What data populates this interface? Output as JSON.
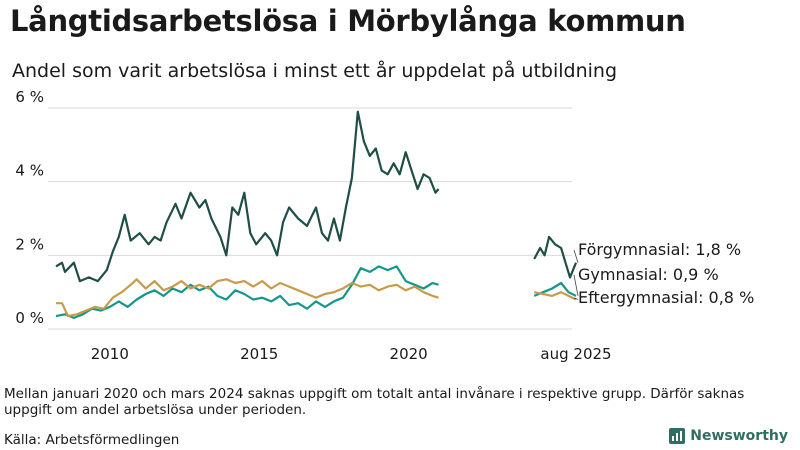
{
  "title": "Långtidsarbetslösa i Mörbylånga kommun",
  "subtitle": "Andel som varit arbetslösa i minst ett år uppdelat på utbildning",
  "note": "Mellan januari 2020 och mars 2024 saknas uppgift om totalt antal invånare i respektive grupp. Därför saknas uppgift om andel arbetslösa under perioden.",
  "source": "Källa: Arbetsförmedlingen",
  "brand": "Newsworthy",
  "colors": {
    "forgymnasial": "#1f4e46",
    "gymnasial": "#14978a",
    "eftergymnasial": "#c99a4a"
  },
  "chart_data": {
    "type": "line",
    "x_unit": "year",
    "ylim": [
      0,
      6
    ],
    "yticks": [
      0,
      2,
      4,
      6
    ],
    "ytick_labels": [
      "0 %",
      "2 %",
      "4 %",
      "6 %"
    ],
    "xticks": [
      2010,
      2015,
      2020,
      2025.6
    ],
    "xtick_labels": [
      "2010",
      "2015",
      "2020",
      "aug 2025"
    ],
    "grid": "horizontal",
    "series": [
      {
        "name": "Förgymnasial",
        "end_label": "Förgymnasial: 1,8 %",
        "color": "#1f4e46",
        "segments": [
          [
            [
              2008.2,
              1.7
            ],
            [
              2008.4,
              1.8
            ],
            [
              2008.5,
              1.55
            ],
            [
              2008.8,
              1.8
            ],
            [
              2009.0,
              1.3
            ],
            [
              2009.3,
              1.4
            ],
            [
              2009.6,
              1.3
            ],
            [
              2009.9,
              1.6
            ],
            [
              2010.1,
              2.1
            ],
            [
              2010.3,
              2.5
            ],
            [
              2010.5,
              3.1
            ],
            [
              2010.7,
              2.4
            ],
            [
              2011.0,
              2.6
            ],
            [
              2011.3,
              2.3
            ],
            [
              2011.5,
              2.5
            ],
            [
              2011.7,
              2.4
            ],
            [
              2011.9,
              2.9
            ],
            [
              2012.2,
              3.4
            ],
            [
              2012.4,
              3.0
            ],
            [
              2012.7,
              3.7
            ],
            [
              2013.0,
              3.3
            ],
            [
              2013.2,
              3.5
            ],
            [
              2013.4,
              3.0
            ],
            [
              2013.7,
              2.5
            ],
            [
              2013.9,
              2.0
            ],
            [
              2014.1,
              3.3
            ],
            [
              2014.3,
              3.1
            ],
            [
              2014.5,
              3.7
            ],
            [
              2014.7,
              2.6
            ],
            [
              2014.9,
              2.3
            ],
            [
              2015.2,
              2.6
            ],
            [
              2015.4,
              2.4
            ],
            [
              2015.6,
              2.0
            ],
            [
              2015.8,
              2.9
            ],
            [
              2016.0,
              3.3
            ],
            [
              2016.3,
              3.0
            ],
            [
              2016.6,
              2.8
            ],
            [
              2016.9,
              3.3
            ],
            [
              2017.1,
              2.6
            ],
            [
              2017.3,
              2.4
            ],
            [
              2017.5,
              3.0
            ],
            [
              2017.7,
              2.4
            ],
            [
              2017.9,
              3.3
            ],
            [
              2018.1,
              4.1
            ],
            [
              2018.3,
              5.9
            ],
            [
              2018.5,
              5.1
            ],
            [
              2018.7,
              4.7
            ],
            [
              2018.9,
              4.9
            ],
            [
              2019.1,
              4.3
            ],
            [
              2019.3,
              4.2
            ],
            [
              2019.5,
              4.5
            ],
            [
              2019.7,
              4.2
            ],
            [
              2019.9,
              4.8
            ],
            [
              2020.1,
              4.3
            ],
            [
              2020.3,
              3.8
            ],
            [
              2020.5,
              4.2
            ],
            [
              2020.7,
              4.1
            ],
            [
              2020.9,
              3.7
            ],
            [
              2021.0,
              3.8
            ]
          ],
          [
            [
              2024.2,
              1.9
            ],
            [
              2024.4,
              2.2
            ],
            [
              2024.55,
              2.0
            ],
            [
              2024.7,
              2.5
            ],
            [
              2024.9,
              2.3
            ],
            [
              2025.1,
              2.2
            ],
            [
              2025.25,
              1.8
            ],
            [
              2025.4,
              1.4
            ],
            [
              2025.6,
              1.8
            ]
          ]
        ]
      },
      {
        "name": "Gymnasial",
        "end_label": "Gymnasial: 0,9 %",
        "color": "#14978a",
        "segments": [
          [
            [
              2008.2,
              0.35
            ],
            [
              2008.5,
              0.4
            ],
            [
              2008.8,
              0.3
            ],
            [
              2009.1,
              0.4
            ],
            [
              2009.4,
              0.55
            ],
            [
              2009.7,
              0.5
            ],
            [
              2010.0,
              0.6
            ],
            [
              2010.3,
              0.75
            ],
            [
              2010.6,
              0.6
            ],
            [
              2010.9,
              0.8
            ],
            [
              2011.2,
              0.95
            ],
            [
              2011.5,
              1.05
            ],
            [
              2011.8,
              0.9
            ],
            [
              2012.1,
              1.1
            ],
            [
              2012.4,
              1.0
            ],
            [
              2012.7,
              1.2
            ],
            [
              2013.0,
              1.05
            ],
            [
              2013.3,
              1.15
            ],
            [
              2013.6,
              0.9
            ],
            [
              2013.9,
              0.8
            ],
            [
              2014.2,
              1.05
            ],
            [
              2014.5,
              0.95
            ],
            [
              2014.8,
              0.8
            ],
            [
              2015.1,
              0.85
            ],
            [
              2015.4,
              0.75
            ],
            [
              2015.7,
              0.9
            ],
            [
              2016.0,
              0.65
            ],
            [
              2016.3,
              0.7
            ],
            [
              2016.6,
              0.55
            ],
            [
              2016.9,
              0.75
            ],
            [
              2017.2,
              0.6
            ],
            [
              2017.5,
              0.75
            ],
            [
              2017.8,
              0.85
            ],
            [
              2018.1,
              1.2
            ],
            [
              2018.4,
              1.65
            ],
            [
              2018.7,
              1.55
            ],
            [
              2019.0,
              1.7
            ],
            [
              2019.3,
              1.6
            ],
            [
              2019.6,
              1.7
            ],
            [
              2019.9,
              1.3
            ],
            [
              2020.2,
              1.2
            ],
            [
              2020.5,
              1.1
            ],
            [
              2020.8,
              1.25
            ],
            [
              2021.0,
              1.2
            ]
          ],
          [
            [
              2024.2,
              0.9
            ],
            [
              2024.5,
              1.0
            ],
            [
              2024.8,
              1.1
            ],
            [
              2025.1,
              1.25
            ],
            [
              2025.35,
              1.0
            ],
            [
              2025.6,
              0.9
            ]
          ]
        ]
      },
      {
        "name": "Eftergymnasial",
        "end_label": "Eftergymnasial: 0,8 %",
        "color": "#c99a4a",
        "segments": [
          [
            [
              2008.2,
              0.7
            ],
            [
              2008.4,
              0.7
            ],
            [
              2008.6,
              0.35
            ],
            [
              2008.9,
              0.4
            ],
            [
              2009.2,
              0.5
            ],
            [
              2009.5,
              0.6
            ],
            [
              2009.8,
              0.55
            ],
            [
              2010.1,
              0.85
            ],
            [
              2010.4,
              1.0
            ],
            [
              2010.7,
              1.2
            ],
            [
              2010.9,
              1.35
            ],
            [
              2011.2,
              1.1
            ],
            [
              2011.5,
              1.3
            ],
            [
              2011.8,
              1.05
            ],
            [
              2012.1,
              1.15
            ],
            [
              2012.4,
              1.3
            ],
            [
              2012.7,
              1.1
            ],
            [
              2013.0,
              1.2
            ],
            [
              2013.3,
              1.1
            ],
            [
              2013.6,
              1.3
            ],
            [
              2013.9,
              1.35
            ],
            [
              2014.2,
              1.25
            ],
            [
              2014.5,
              1.3
            ],
            [
              2014.8,
              1.15
            ],
            [
              2015.1,
              1.3
            ],
            [
              2015.4,
              1.1
            ],
            [
              2015.7,
              1.25
            ],
            [
              2016.0,
              1.15
            ],
            [
              2016.3,
              1.05
            ],
            [
              2016.6,
              0.95
            ],
            [
              2016.9,
              0.85
            ],
            [
              2017.2,
              0.95
            ],
            [
              2017.5,
              1.0
            ],
            [
              2017.8,
              1.1
            ],
            [
              2018.1,
              1.25
            ],
            [
              2018.4,
              1.15
            ],
            [
              2018.7,
              1.2
            ],
            [
              2019.0,
              1.05
            ],
            [
              2019.3,
              1.15
            ],
            [
              2019.6,
              1.2
            ],
            [
              2019.9,
              1.05
            ],
            [
              2020.2,
              1.15
            ],
            [
              2020.5,
              1.0
            ],
            [
              2020.8,
              0.9
            ],
            [
              2021.0,
              0.85
            ]
          ],
          [
            [
              2024.2,
              1.0
            ],
            [
              2024.5,
              0.95
            ],
            [
              2024.8,
              0.9
            ],
            [
              2025.1,
              1.0
            ],
            [
              2025.35,
              0.9
            ],
            [
              2025.6,
              0.8
            ]
          ]
        ]
      }
    ]
  }
}
